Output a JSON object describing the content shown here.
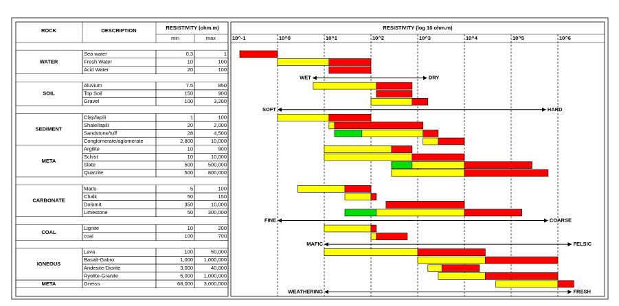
{
  "table": {
    "headers": {
      "rock": "ROCK",
      "description": "DESCRIPTION",
      "resistivity": "RESISTIVITY (ohm.m)",
      "min": "min",
      "max": "max"
    },
    "groups": [
      {
        "rock": "WATER",
        "rows": [
          [
            "Sea water",
            "0.3",
            "1"
          ],
          [
            "Fresh Water",
            "10",
            "100"
          ],
          [
            "Acid Water",
            "20",
            "100"
          ]
        ]
      },
      {
        "rock": "SOIL",
        "rows": [
          [
            "Aluvium",
            "7.5",
            "850"
          ],
          [
            "Top Soil",
            "150",
            "900"
          ],
          [
            "Gravel",
            "100",
            "3,200"
          ]
        ]
      },
      {
        "rock": "SEDIMENT",
        "rows": [
          [
            "Clay/lapili",
            "1",
            "100"
          ],
          [
            "Shale/lapili",
            "20",
            "2,000"
          ],
          [
            "Sandstone/tuff",
            "28",
            "4,500"
          ],
          [
            "Conglomerate/aglomerate",
            "2,800",
            "10,000"
          ]
        ]
      },
      {
        "rock": "META",
        "rows": [
          [
            "Argilite",
            "10",
            "900"
          ],
          [
            "Schist",
            "10",
            "10,000"
          ],
          [
            "Slate",
            "500",
            "500,000"
          ],
          [
            "Quarzite",
            "500",
            "800,000"
          ]
        ]
      },
      {
        "rock": "CARBONATE",
        "rows": [
          [
            "Marls",
            "5",
            "100"
          ],
          [
            "Chalk",
            "50",
            "150"
          ],
          [
            "Dolomit",
            "350",
            "10,000"
          ],
          [
            "Limestone",
            "50",
            "300,000"
          ]
        ]
      },
      {
        "rock": "COAL",
        "rows": [
          [
            "Lignite",
            "10",
            "200"
          ],
          [
            "coal",
            "100",
            "700"
          ]
        ]
      },
      {
        "rock": "IGNEOUS",
        "rows": [
          [
            "Lava",
            "100",
            "50,000"
          ],
          [
            "Basalt-Gabro",
            "1,000",
            "1,000,000"
          ],
          [
            "Andesite-Diorite",
            "3,000",
            "40,000"
          ],
          [
            "Ryolite-Granite",
            "5,000",
            "1,000,000"
          ]
        ]
      },
      {
        "rock": "META",
        "rows": [
          [
            "Gneiss",
            "68,000",
            "3,000,000"
          ]
        ]
      }
    ]
  },
  "chart_data": {
    "type": "range-bar",
    "title": "RESISTIVITY (log 10 ohm.m)",
    "log_scale": true,
    "xlim": [
      0.1,
      10000000
    ],
    "xticks": [
      {
        "value": 0.1,
        "label": "10^-1"
      },
      {
        "value": 1,
        "label": "10^0"
      },
      {
        "value": 10,
        "label": "10^1"
      },
      {
        "value": 100,
        "label": "10^2"
      },
      {
        "value": 1000,
        "label": "10^3"
      },
      {
        "value": 10000,
        "label": "10^4"
      },
      {
        "value": 100000,
        "label": "10^5"
      },
      {
        "value": 1000000,
        "label": "10^6"
      }
    ],
    "grid": true,
    "bars": [
      [
        {
          "from": 0.155,
          "to": 1,
          "color": "#ff0000"
        }
      ],
      [
        {
          "from": 1,
          "to": 12.6,
          "color": "#ffff00"
        },
        {
          "from": 12.6,
          "to": 100,
          "color": "#ff0000"
        }
      ],
      [
        {
          "from": 12.6,
          "to": 100,
          "color": "#ff0000"
        }
      ],
      [
        {
          "from": 5.8,
          "to": 130,
          "color": "#ffff00"
        },
        {
          "from": 130,
          "to": 760,
          "color": "#ff0000"
        }
      ],
      [
        {
          "from": 130,
          "to": 760,
          "color": "#ff0000"
        }
      ],
      [
        {
          "from": 100,
          "to": 760,
          "color": "#ffff00"
        },
        {
          "from": 760,
          "to": 1650,
          "color": "#ff0000"
        }
      ],
      [
        {
          "from": 1,
          "to": 12.6,
          "color": "#ffff00"
        },
        {
          "from": 12.6,
          "to": 100,
          "color": "#ff0000"
        }
      ],
      [
        {
          "from": 12.6,
          "to": 16.6,
          "color": "#ffff00"
        },
        {
          "from": 16.6,
          "to": 1300,
          "color": "#ff0000"
        }
      ],
      [
        {
          "from": 16.6,
          "to": 64,
          "color": "#00dd00"
        },
        {
          "from": 64,
          "to": 1300,
          "color": "#ffff00"
        },
        {
          "from": 1300,
          "to": 2750,
          "color": "#ff0000"
        }
      ],
      [
        {
          "from": 1300,
          "to": 2750,
          "color": "#ffff00"
        },
        {
          "from": 2750,
          "to": 10000,
          "color": "#ff0000"
        }
      ],
      [
        {
          "from": 10,
          "to": 275,
          "color": "#ffff00"
        },
        {
          "from": 275,
          "to": 760,
          "color": "#ff0000"
        }
      ],
      [
        {
          "from": 10,
          "to": 760,
          "color": "#ffff00"
        },
        {
          "from": 760,
          "to": 10000,
          "color": "#ff0000"
        }
      ],
      [
        {
          "from": 275,
          "to": 760,
          "color": "#00dd00"
        },
        {
          "from": 760,
          "to": 10000,
          "color": "#ffff00"
        },
        {
          "from": 10000,
          "to": 280000,
          "color": "#ff0000"
        }
      ],
      [
        {
          "from": 275,
          "to": 10000,
          "color": "#ffff00"
        },
        {
          "from": 10000,
          "to": 620000,
          "color": "#ff0000"
        }
      ],
      [
        {
          "from": 2.7,
          "to": 27.6,
          "color": "#ffff00"
        },
        {
          "from": 27.6,
          "to": 100,
          "color": "#ff0000"
        }
      ],
      [
        {
          "from": 27.6,
          "to": 100,
          "color": "#ffff00"
        },
        {
          "from": 100,
          "to": 130,
          "color": "#ff0000"
        }
      ],
      [
        {
          "from": 210,
          "to": 10000,
          "color": "#ff0000"
        }
      ],
      [
        {
          "from": 27.6,
          "to": 130,
          "color": "#00dd00"
        },
        {
          "from": 130,
          "to": 10000,
          "color": "#ffff00"
        },
        {
          "from": 10000,
          "to": 170000,
          "color": "#ff0000"
        }
      ],
      [
        {
          "from": 10,
          "to": 100,
          "color": "#ffff00"
        },
        {
          "from": 100,
          "to": 130,
          "color": "#ff0000"
        }
      ],
      [
        {
          "from": 100,
          "to": 130,
          "color": "#ffff00"
        },
        {
          "from": 130,
          "to": 600,
          "color": "#ff0000"
        }
      ],
      [
        {
          "from": 10,
          "to": 1000,
          "color": "#ffff00"
        },
        {
          "from": 1000,
          "to": 28000,
          "color": "#ff0000"
        }
      ],
      [
        {
          "from": 1000,
          "to": 28000,
          "color": "#ffff00"
        },
        {
          "from": 28000,
          "to": 1000000,
          "color": "#ff0000"
        }
      ],
      [
        {
          "from": 1650,
          "to": 3300,
          "color": "#ffff00"
        },
        {
          "from": 3300,
          "to": 21000,
          "color": "#ff0000"
        }
      ],
      [
        {
          "from": 2750,
          "to": 28000,
          "color": "#ffff00"
        },
        {
          "from": 28000,
          "to": 1000000,
          "color": "#ff0000"
        }
      ],
      [
        {
          "from": 47000,
          "to": 1000000,
          "color": "#ffff00"
        },
        {
          "from": 1000000,
          "to": 2200000,
          "color": "#ff0000"
        }
      ]
    ],
    "annotations": [
      {
        "left": "WET",
        "right": "DRY",
        "from": 5.6,
        "to": 1600
      },
      {
        "left": "SOFT",
        "right": "HARD",
        "from": 1,
        "to": 560000
      },
      {
        "left": "FINE",
        "right": "COARSE",
        "from": 1,
        "to": 620000
      },
      {
        "left": "MAFIC",
        "right": "FELSIC",
        "from": 10,
        "to": 2000000
      },
      {
        "left": "WEATHERING",
        "right": "FRESH",
        "from": 10,
        "to": 2000000
      }
    ]
  }
}
